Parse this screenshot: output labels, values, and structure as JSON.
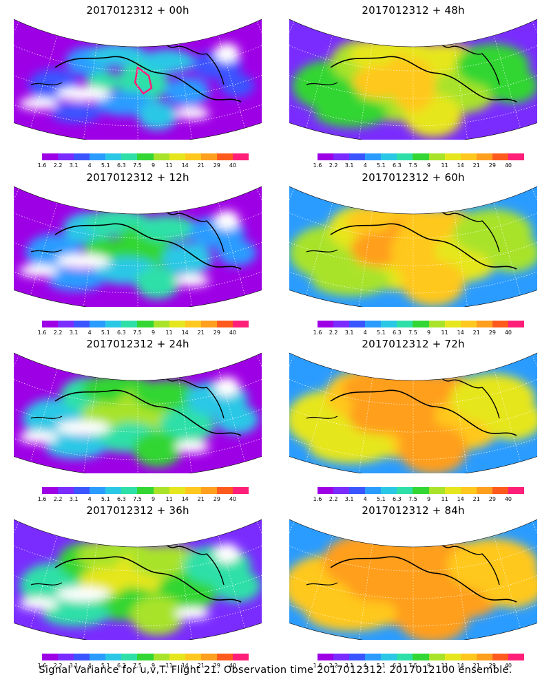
{
  "caption": "Signal Variance for u,v,T. Flight 21. Observation time 2017012312. 2017012100 ensemble.",
  "colorbar": {
    "labels": [
      "1.6",
      "2.2",
      "3.1",
      "4",
      "5.1",
      "6.3",
      "7.5",
      "9",
      "11",
      "14",
      "21",
      "29",
      "40"
    ],
    "colors": [
      "#9e00e6",
      "#7a2cff",
      "#3a55ff",
      "#2b9cff",
      "#2bc8e6",
      "#2ee0a8",
      "#33d633",
      "#a8e32a",
      "#e6e61e",
      "#ffc81e",
      "#ff9f1e",
      "#ff5a1e",
      "#ff1e78"
    ]
  },
  "panels": [
    {
      "title": "2017012312 + 00h",
      "level": 0
    },
    {
      "title": "2017012312 + 48h",
      "level": 4
    },
    {
      "title": "2017012312 + 12h",
      "level": 1
    },
    {
      "title": "2017012312 + 60h",
      "level": 5
    },
    {
      "title": "2017012312 + 24h",
      "level": 2
    },
    {
      "title": "2017012312 + 72h",
      "level": 6
    },
    {
      "title": "2017012312 + 36h",
      "level": 3
    },
    {
      "title": "2017012312 + 84h",
      "level": 7
    }
  ]
}
